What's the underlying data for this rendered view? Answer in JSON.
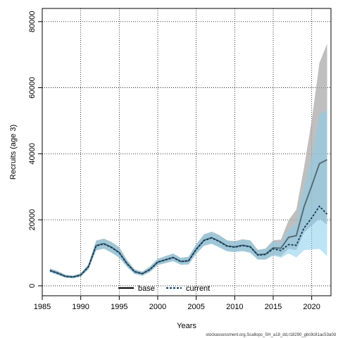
{
  "chart_data": {
    "type": "line",
    "xlabel": "Years",
    "ylabel": "Recruits (age 3)",
    "xlim": [
      1985,
      2022.5
    ],
    "ylim": [
      -3000,
      84000
    ],
    "x_ticks": [
      1985,
      1990,
      1995,
      2000,
      2005,
      2010,
      2015,
      2020
    ],
    "y_ticks": [
      0,
      20000,
      40000,
      60000,
      80000
    ],
    "grid": true,
    "legend_placement": "bottom-center",
    "x": [
      1986,
      1987,
      1988,
      1989,
      1990,
      1991,
      1992,
      1993,
      1994,
      1995,
      1996,
      1997,
      1998,
      1999,
      2000,
      2001,
      2002,
      2003,
      2004,
      2005,
      2006,
      2007,
      2008,
      2009,
      2010,
      2011,
      2012,
      2013,
      2014,
      2015,
      2016,
      2017,
      2018,
      2019,
      2020,
      2021,
      2022
    ],
    "series": [
      {
        "name": "base",
        "color": "#000000",
        "band_color": "#a9a9a9",
        "values": [
          4700,
          3900,
          2900,
          2700,
          3300,
          5800,
          12200,
          12800,
          11700,
          10100,
          6800,
          4300,
          3700,
          5000,
          7200,
          7900,
          8600,
          7400,
          7600,
          11100,
          13800,
          14600,
          13500,
          12100,
          11800,
          12300,
          11900,
          9400,
          9600,
          11500,
          11400,
          14700,
          15200,
          23900,
          30300,
          37000,
          38200
        ],
        "lower": [
          4200,
          3400,
          2500,
          2300,
          2800,
          5000,
          10800,
          11300,
          10100,
          8600,
          5800,
          3600,
          3100,
          4200,
          6300,
          6900,
          7500,
          6400,
          6500,
          9700,
          12200,
          12800,
          11700,
          10500,
          10300,
          10600,
          10100,
          8000,
          8000,
          9400,
          9000,
          11200,
          10800,
          16100,
          18300,
          20300,
          18500
        ],
        "upper": [
          5300,
          4500,
          3400,
          3100,
          3800,
          6600,
          13700,
          14300,
          13300,
          11700,
          7900,
          5000,
          4300,
          5900,
          8200,
          9000,
          9800,
          8500,
          8800,
          12600,
          15600,
          16400,
          15400,
          13800,
          13500,
          14100,
          13800,
          10900,
          11300,
          13800,
          14000,
          19900,
          23100,
          35800,
          50100,
          67500,
          73300
        ]
      },
      {
        "name": "current",
        "color": "#0b3b5c",
        "band_color": "#87ceeb",
        "values": [
          4600,
          3800,
          2850,
          2650,
          3250,
          5750,
          12100,
          12700,
          11600,
          10000,
          6700,
          4250,
          3650,
          4950,
          7150,
          7850,
          8550,
          7350,
          7550,
          11000,
          13700,
          14500,
          13400,
          12000,
          11700,
          12200,
          11800,
          9300,
          9500,
          11200,
          10700,
          12500,
          12300,
          17500,
          20600,
          24100,
          21700
        ],
        "lower": [
          4100,
          3300,
          2450,
          2250,
          2750,
          4950,
          10700,
          11200,
          10000,
          8500,
          5700,
          3550,
          3050,
          4150,
          6250,
          6850,
          7450,
          6350,
          6450,
          9600,
          12100,
          12700,
          11600,
          10400,
          10200,
          10500,
          10000,
          7900,
          7900,
          9100,
          8500,
          9800,
          8600,
          10800,
          11000,
          11200,
          9000
        ],
        "upper": [
          5200,
          4400,
          3350,
          3050,
          3750,
          6550,
          13600,
          14200,
          13200,
          11600,
          7800,
          4950,
          4250,
          5850,
          8150,
          8950,
          9750,
          8450,
          8750,
          12500,
          15500,
          16300,
          15300,
          13700,
          13400,
          14000,
          13700,
          10800,
          11200,
          13400,
          13000,
          16900,
          18800,
          30000,
          38500,
          51700,
          53500
        ]
      }
    ]
  },
  "footer_text": "stockassessment.org,Scallops_SH_a18_dd,r18290_gitc9c81ac53a0d"
}
